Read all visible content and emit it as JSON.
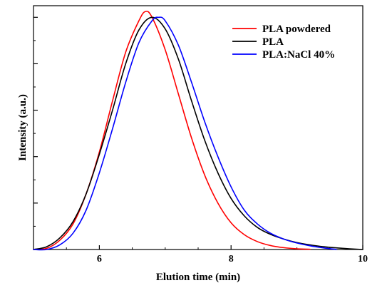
{
  "chart_data": {
    "type": "line",
    "title": "",
    "xlabel": "Elution time (min)",
    "ylabel": "Intensity (a.u.)",
    "xlim": [
      5,
      10
    ],
    "ylim": [
      0,
      1.05
    ],
    "x_ticks": [
      {
        "value": 6,
        "label": "6"
      },
      {
        "value": 8,
        "label": "8"
      },
      {
        "value": 10,
        "label": "10"
      }
    ],
    "x_minor_step": 0.5,
    "y_ticks": [
      0,
      0.2,
      0.4,
      0.6,
      0.8,
      1.0
    ],
    "y_minor_step": 0.1,
    "y_tick_labels_shown": false,
    "grid": false,
    "legend_position": "top-right",
    "series": [
      {
        "name": "PLA powdered",
        "color": "#ff0000",
        "x": [
          5.0,
          5.2,
          5.4,
          5.6,
          5.8,
          6.0,
          6.2,
          6.4,
          6.6,
          6.7,
          6.8,
          7.0,
          7.2,
          7.4,
          7.6,
          7.8,
          8.0,
          8.2,
          8.4,
          8.6,
          8.8,
          9.0,
          9.2
        ],
        "y": [
          0.0,
          0.005,
          0.04,
          0.11,
          0.24,
          0.42,
          0.64,
          0.85,
          0.985,
          1.025,
          1.0,
          0.86,
          0.67,
          0.48,
          0.32,
          0.2,
          0.115,
          0.064,
          0.034,
          0.017,
          0.008,
          0.003,
          0.001
        ]
      },
      {
        "name": "PLA",
        "color": "#000000",
        "x": [
          5.0,
          5.2,
          5.4,
          5.6,
          5.8,
          6.0,
          6.2,
          6.4,
          6.6,
          6.8,
          7.0,
          7.2,
          7.4,
          7.6,
          7.8,
          8.0,
          8.2,
          8.4,
          8.6,
          8.8,
          9.0,
          9.2,
          9.4,
          9.6,
          9.8,
          10.0
        ],
        "y": [
          0.0,
          0.012,
          0.05,
          0.12,
          0.24,
          0.41,
          0.6,
          0.8,
          0.945,
          1.0,
          0.95,
          0.82,
          0.64,
          0.47,
          0.33,
          0.22,
          0.145,
          0.095,
          0.065,
          0.045,
          0.03,
          0.02,
          0.012,
          0.007,
          0.003,
          0.0
        ]
      },
      {
        "name": "PLA:NaCl 40%",
        "color": "#0000ff",
        "x": [
          5.0,
          5.2,
          5.4,
          5.6,
          5.8,
          6.0,
          6.2,
          6.4,
          6.6,
          6.8,
          6.9,
          7.0,
          7.2,
          7.4,
          7.6,
          7.8,
          8.0,
          8.2,
          8.4,
          8.6,
          8.8,
          9.0,
          9.2,
          9.4,
          9.6
        ],
        "y": [
          0.0,
          0.0,
          0.02,
          0.07,
          0.17,
          0.33,
          0.52,
          0.72,
          0.89,
          0.985,
          1.0,
          0.985,
          0.88,
          0.72,
          0.55,
          0.4,
          0.27,
          0.17,
          0.11,
          0.07,
          0.045,
          0.028,
          0.016,
          0.007,
          0.0
        ]
      }
    ]
  }
}
